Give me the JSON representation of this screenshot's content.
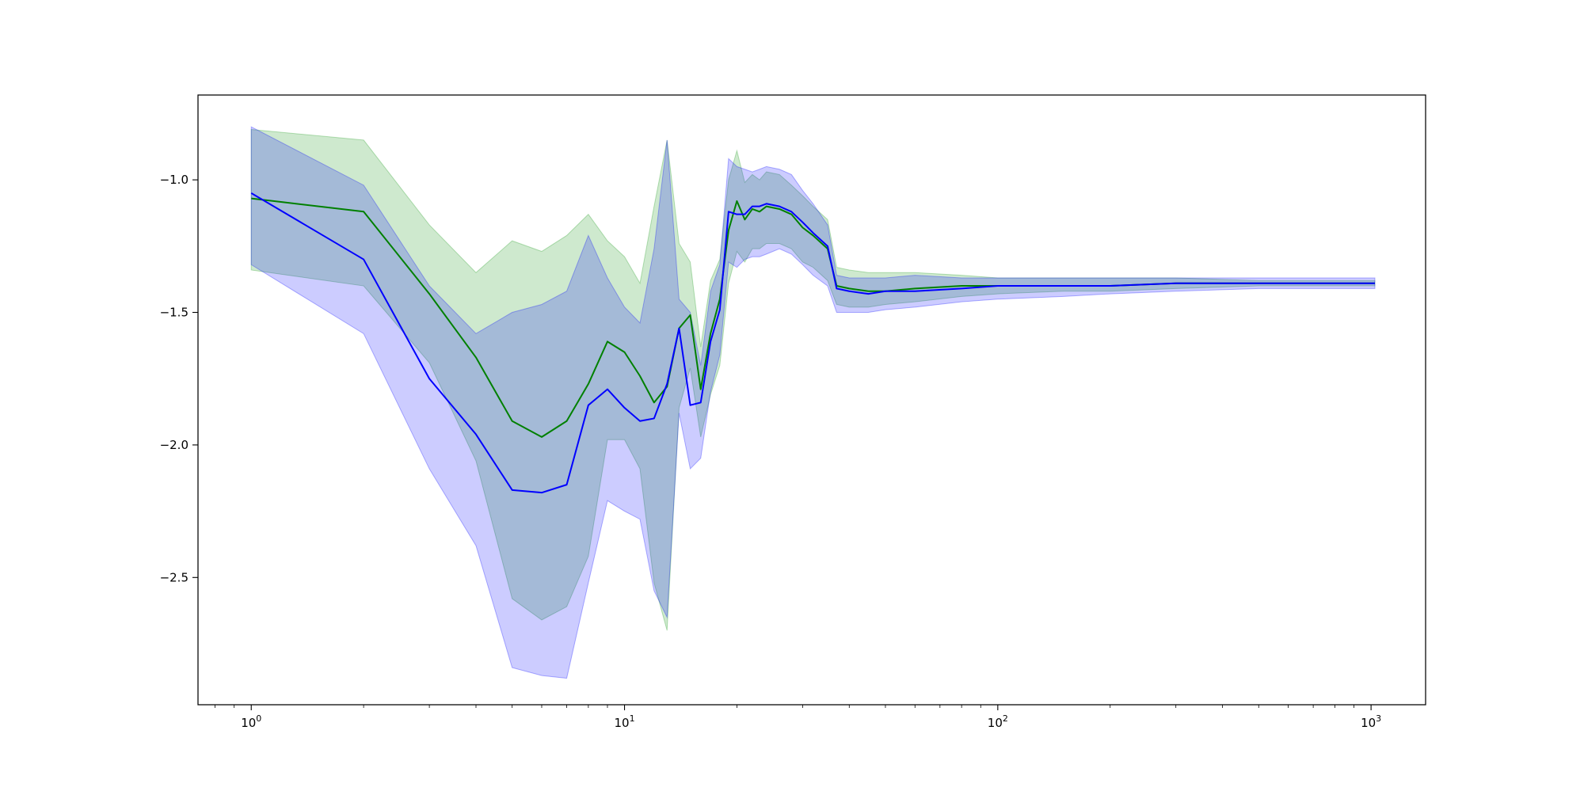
{
  "chart_data": {
    "type": "line",
    "title": "",
    "xlabel": "",
    "ylabel": "",
    "xscale": "log",
    "xlim": [
      0.72,
      1400
    ],
    "ylim": [
      -2.98,
      -0.68
    ],
    "grid": false,
    "legend": "none",
    "x_ticks": [
      {
        "value": 1,
        "base": "10",
        "exp": "0"
      },
      {
        "value": 10,
        "base": "10",
        "exp": "1"
      },
      {
        "value": 100,
        "base": "10",
        "exp": "2"
      },
      {
        "value": 1000,
        "base": "10",
        "exp": "3"
      }
    ],
    "y_ticks": [
      {
        "value": -1.0,
        "label": "−1.0"
      },
      {
        "value": -1.5,
        "label": "−1.5"
      },
      {
        "value": -2.0,
        "label": "−2.0"
      },
      {
        "value": -2.5,
        "label": "−2.5"
      }
    ],
    "series": [
      {
        "color": "#008000",
        "band_color": "#2ca02c",
        "band_opacity": 0.23,
        "x": [
          1,
          2,
          3,
          4,
          5,
          6,
          7,
          8,
          9,
          10,
          11,
          12,
          13,
          14,
          15,
          16,
          17,
          18,
          19,
          20,
          21,
          22,
          23,
          24,
          26,
          28,
          30,
          32,
          35,
          37,
          40,
          45,
          50,
          60,
          80,
          100,
          150,
          200,
          300,
          500,
          700,
          1024
        ],
        "y": [
          -1.07,
          -1.12,
          -1.43,
          -1.67,
          -1.91,
          -1.97,
          -1.91,
          -1.77,
          -1.61,
          -1.65,
          -1.74,
          -1.84,
          -1.78,
          -1.56,
          -1.51,
          -1.79,
          -1.58,
          -1.45,
          -1.19,
          -1.08,
          -1.15,
          -1.11,
          -1.12,
          -1.1,
          -1.11,
          -1.13,
          -1.18,
          -1.21,
          -1.26,
          -1.4,
          -1.41,
          -1.42,
          -1.42,
          -1.41,
          -1.4,
          -1.4,
          -1.4,
          -1.4,
          -1.39,
          -1.39,
          -1.39,
          -1.39
        ],
        "upper": [
          -0.81,
          -0.85,
          -1.17,
          -1.35,
          -1.23,
          -1.27,
          -1.21,
          -1.13,
          -1.23,
          -1.29,
          -1.39,
          -1.1,
          -0.85,
          -1.24,
          -1.31,
          -1.63,
          -1.38,
          -1.3,
          -1.0,
          -0.89,
          -1.01,
          -0.98,
          -1.0,
          -0.97,
          -0.98,
          -1.02,
          -1.06,
          -1.1,
          -1.15,
          -1.33,
          -1.34,
          -1.35,
          -1.35,
          -1.35,
          -1.36,
          -1.37,
          -1.37,
          -1.37,
          -1.37,
          -1.38,
          -1.38,
          -1.38
        ],
        "lower": [
          -1.34,
          -1.4,
          -1.69,
          -2.06,
          -2.58,
          -2.66,
          -2.61,
          -2.42,
          -1.98,
          -1.98,
          -2.09,
          -2.52,
          -2.7,
          -1.86,
          -1.71,
          -1.97,
          -1.81,
          -1.7,
          -1.39,
          -1.27,
          -1.31,
          -1.26,
          -1.26,
          -1.24,
          -1.24,
          -1.26,
          -1.31,
          -1.33,
          -1.38,
          -1.47,
          -1.48,
          -1.48,
          -1.47,
          -1.46,
          -1.44,
          -1.43,
          -1.42,
          -1.42,
          -1.41,
          -1.4,
          -1.4,
          -1.4
        ]
      },
      {
        "color": "#0000ff",
        "band_color": "#0000ff",
        "band_opacity": 0.2,
        "x": [
          1,
          2,
          3,
          4,
          5,
          6,
          7,
          8,
          9,
          10,
          11,
          12,
          13,
          14,
          15,
          16,
          17,
          18,
          19,
          20,
          21,
          22,
          23,
          24,
          26,
          28,
          30,
          32,
          35,
          37,
          40,
          45,
          50,
          60,
          80,
          100,
          150,
          200,
          300,
          500,
          700,
          1024
        ],
        "y": [
          -1.05,
          -1.3,
          -1.75,
          -1.96,
          -2.17,
          -2.18,
          -2.15,
          -1.85,
          -1.79,
          -1.86,
          -1.91,
          -1.9,
          -1.77,
          -1.56,
          -1.85,
          -1.84,
          -1.61,
          -1.49,
          -1.12,
          -1.13,
          -1.13,
          -1.1,
          -1.1,
          -1.09,
          -1.1,
          -1.12,
          -1.16,
          -1.2,
          -1.25,
          -1.41,
          -1.42,
          -1.43,
          -1.42,
          -1.42,
          -1.41,
          -1.4,
          -1.4,
          -1.4,
          -1.39,
          -1.39,
          -1.39,
          -1.39
        ],
        "upper": [
          -0.8,
          -1.02,
          -1.4,
          -1.58,
          -1.5,
          -1.47,
          -1.42,
          -1.21,
          -1.37,
          -1.48,
          -1.54,
          -1.26,
          -0.85,
          -1.45,
          -1.5,
          -1.7,
          -1.42,
          -1.32,
          -0.92,
          -0.95,
          -0.96,
          -0.97,
          -0.96,
          -0.95,
          -0.96,
          -0.98,
          -1.04,
          -1.09,
          -1.17,
          -1.36,
          -1.37,
          -1.37,
          -1.37,
          -1.36,
          -1.37,
          -1.37,
          -1.37,
          -1.37,
          -1.37,
          -1.37,
          -1.37,
          -1.37
        ],
        "lower": [
          -1.32,
          -1.58,
          -2.09,
          -2.38,
          -2.84,
          -2.87,
          -2.88,
          -2.52,
          -2.21,
          -2.25,
          -2.28,
          -2.55,
          -2.65,
          -1.88,
          -2.09,
          -2.05,
          -1.8,
          -1.66,
          -1.31,
          -1.33,
          -1.3,
          -1.29,
          -1.29,
          -1.28,
          -1.26,
          -1.28,
          -1.32,
          -1.36,
          -1.4,
          -1.5,
          -1.5,
          -1.5,
          -1.49,
          -1.48,
          -1.46,
          -1.45,
          -1.44,
          -1.43,
          -1.42,
          -1.41,
          -1.41,
          -1.41
        ]
      }
    ]
  }
}
